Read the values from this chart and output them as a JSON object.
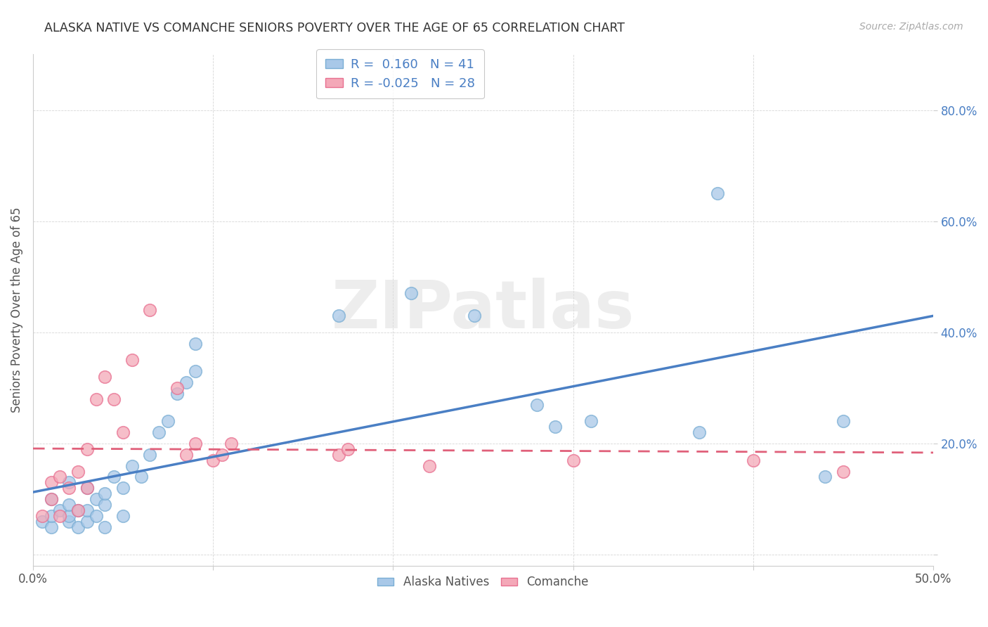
{
  "title": "ALASKA NATIVE VS COMANCHE SENIORS POVERTY OVER THE AGE OF 65 CORRELATION CHART",
  "source": "Source: ZipAtlas.com",
  "ylabel": "Seniors Poverty Over the Age of 65",
  "xlim": [
    0.0,
    0.5
  ],
  "ylim": [
    -0.02,
    0.9
  ],
  "xticks": [
    0.0,
    0.1,
    0.2,
    0.3,
    0.4,
    0.5
  ],
  "xticklabels": [
    "0.0%",
    "",
    "",
    "",
    "",
    "50.0%"
  ],
  "yticks": [
    0.0,
    0.2,
    0.4,
    0.6,
    0.8
  ],
  "yticklabels": [
    "",
    "20.0%",
    "40.0%",
    "60.0%",
    "80.0%"
  ],
  "alaska_R": 0.16,
  "alaska_N": 41,
  "comanche_R": -0.025,
  "comanche_N": 28,
  "alaska_color": "#a8c8e8",
  "comanche_color": "#f4a8b8",
  "alaska_edge_color": "#7aaed4",
  "comanche_edge_color": "#e87090",
  "alaska_line_color": "#4a7fc4",
  "comanche_line_color": "#e0607a",
  "background_color": "#ffffff",
  "watermark_text": "ZIPatlas",
  "alaska_x": [
    0.005,
    0.01,
    0.01,
    0.01,
    0.015,
    0.02,
    0.02,
    0.02,
    0.02,
    0.025,
    0.025,
    0.03,
    0.03,
    0.03,
    0.035,
    0.035,
    0.04,
    0.04,
    0.04,
    0.045,
    0.05,
    0.05,
    0.055,
    0.06,
    0.065,
    0.07,
    0.075,
    0.08,
    0.085,
    0.09,
    0.09,
    0.17,
    0.21,
    0.245,
    0.28,
    0.29,
    0.31,
    0.37,
    0.38,
    0.44,
    0.45
  ],
  "alaska_y": [
    0.06,
    0.05,
    0.07,
    0.1,
    0.08,
    0.06,
    0.07,
    0.09,
    0.13,
    0.05,
    0.08,
    0.06,
    0.08,
    0.12,
    0.07,
    0.1,
    0.05,
    0.09,
    0.11,
    0.14,
    0.07,
    0.12,
    0.16,
    0.14,
    0.18,
    0.22,
    0.24,
    0.29,
    0.31,
    0.33,
    0.38,
    0.43,
    0.47,
    0.43,
    0.27,
    0.23,
    0.24,
    0.22,
    0.65,
    0.14,
    0.24
  ],
  "comanche_x": [
    0.005,
    0.01,
    0.01,
    0.015,
    0.015,
    0.02,
    0.025,
    0.025,
    0.03,
    0.03,
    0.035,
    0.04,
    0.045,
    0.05,
    0.055,
    0.065,
    0.08,
    0.085,
    0.09,
    0.1,
    0.105,
    0.11,
    0.17,
    0.175,
    0.22,
    0.3,
    0.4,
    0.45
  ],
  "comanche_y": [
    0.07,
    0.1,
    0.13,
    0.07,
    0.14,
    0.12,
    0.08,
    0.15,
    0.12,
    0.19,
    0.28,
    0.32,
    0.28,
    0.22,
    0.35,
    0.44,
    0.3,
    0.18,
    0.2,
    0.17,
    0.18,
    0.2,
    0.18,
    0.19,
    0.16,
    0.17,
    0.17,
    0.15
  ]
}
